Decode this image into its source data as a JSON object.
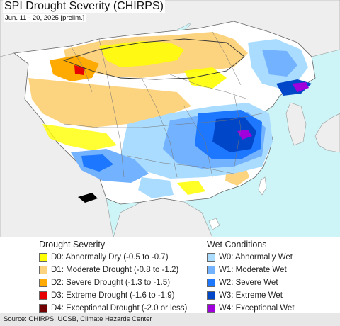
{
  "header": {
    "title": "SPI Drought Severity (CHIRPS)",
    "subtitle": "Jun. 11 - 20, 2025 [prelim.]"
  },
  "colors": {
    "ocean": "#cdf4f6",
    "land": "#ffffff",
    "outside": "#f0f0f0",
    "D0": "#ffff00",
    "D1": "#fcd37f",
    "D2": "#ffaa00",
    "D3": "#e60000",
    "D4": "#730000",
    "W0": "#aadcff",
    "W1": "#73b2ff",
    "W2": "#1e78ff",
    "W3": "#0046c8",
    "W4": "#a000dc",
    "no_data": "#000000"
  },
  "legend": {
    "drought": {
      "title": "Drought Severity",
      "items": [
        {
          "code": "D0",
          "label": "D0: Abnormally Dry (-0.5 to -0.7)",
          "color": "#ffff00"
        },
        {
          "code": "D1",
          "label": "D1: Moderate Drought (-0.8 to -1.2)",
          "color": "#fcd37f"
        },
        {
          "code": "D2",
          "label": "D2: Severe Drought (-1.3 to -1.5)",
          "color": "#ffaa00"
        },
        {
          "code": "D3",
          "label": "D3: Extreme Drought (-1.6 to -1.9)",
          "color": "#e60000"
        },
        {
          "code": "D4",
          "label": "D4: Exceptional Drought (-2.0 or less)",
          "color": "#730000"
        }
      ]
    },
    "wet": {
      "title": "Wet Conditions",
      "items": [
        {
          "code": "W0",
          "label": "W0: Abnormally Wet",
          "color": "#aadcff"
        },
        {
          "code": "W1",
          "label": "W1: Moderate Wet",
          "color": "#73b2ff"
        },
        {
          "code": "W2",
          "label": "W2: Severe Wet",
          "color": "#1e78ff"
        },
        {
          "code": "W3",
          "label": "W3: Extreme Wet",
          "color": "#0046c8"
        },
        {
          "code": "W4",
          "label": "W4: Exceptional Wet",
          "color": "#a000dc"
        }
      ]
    }
  },
  "footer": {
    "source": "Source: CHIRPS, UCSB, Climate Hazards Center"
  }
}
